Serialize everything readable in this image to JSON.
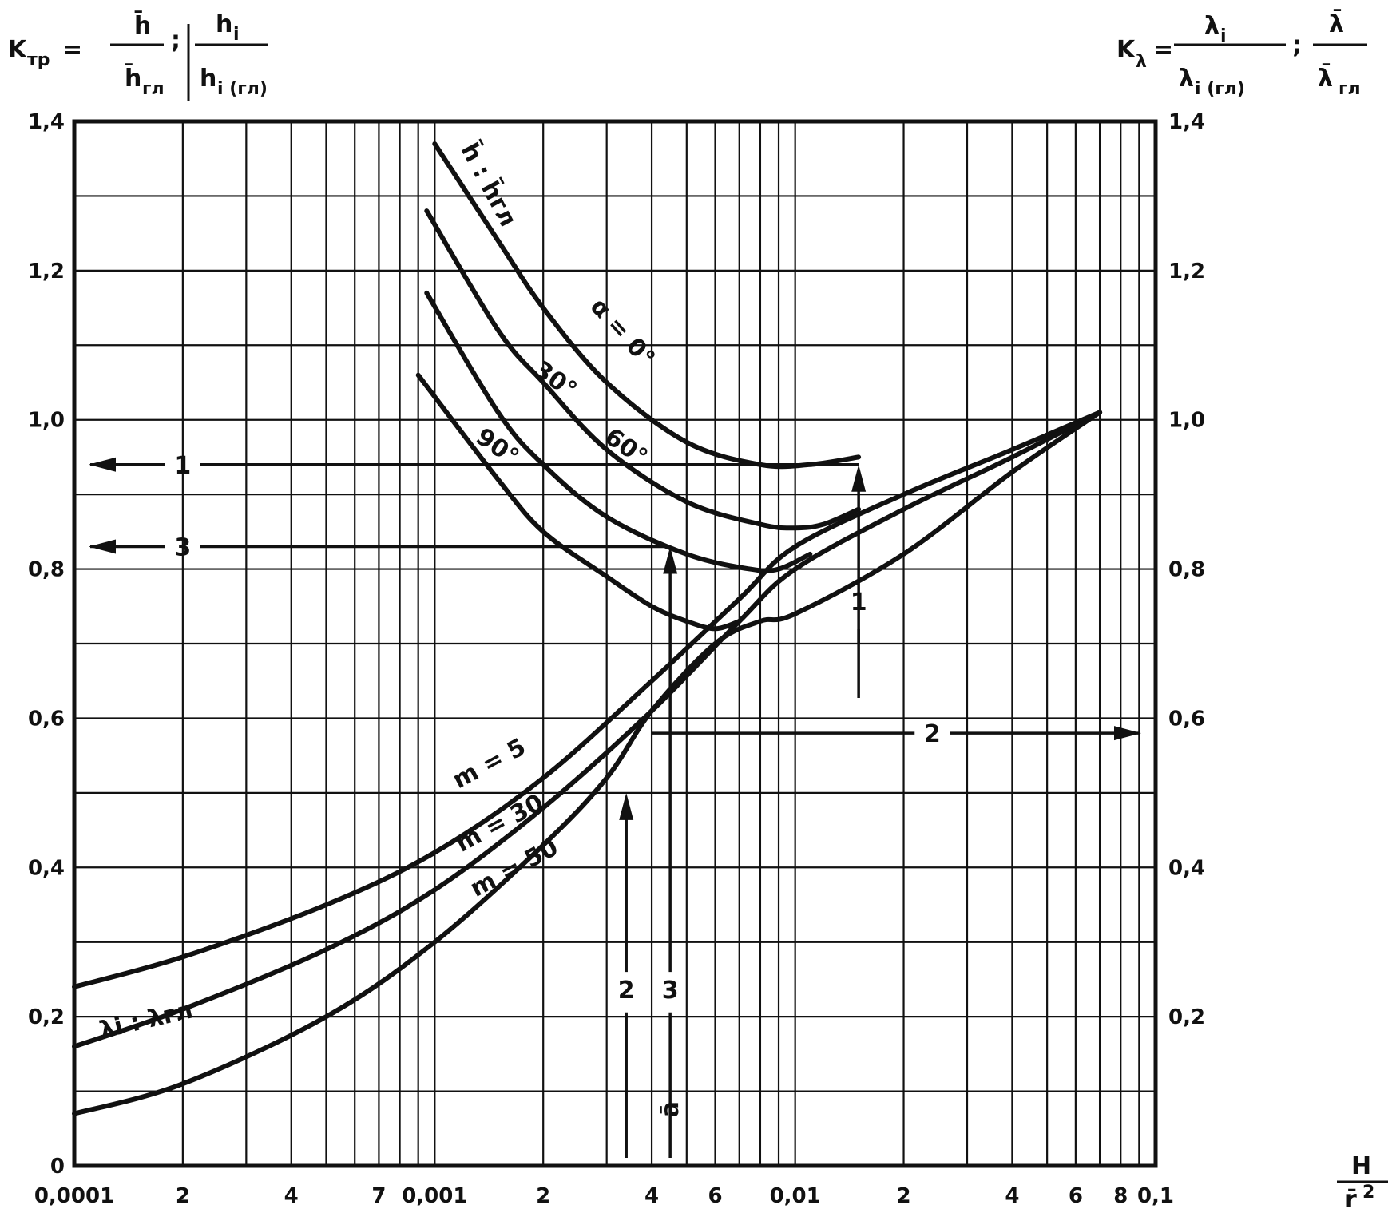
{
  "chart_data": {
    "type": "line",
    "x_scale": "log",
    "xlim": [
      0.0001,
      0.1
    ],
    "ylim": [
      0,
      1.4
    ],
    "grid": true,
    "left_axis_label": {
      "symbol": "K",
      "subscript": "тр",
      "equals": "=",
      "num1": "h̄",
      "den1": "h̄",
      "den1_sub": "гл",
      "sep": ";",
      "num2": "h",
      "num2_sub": "i",
      "den2": "h",
      "den2_sub": "i (гл)"
    },
    "right_axis_label": {
      "symbol": "K",
      "subscript": "λ",
      "equals": "=",
      "num1": "λ",
      "num1_sub": "i",
      "den1": "λ",
      "den1_sub": "i (гл)",
      "sep": ";",
      "num2": "λ̄",
      "den2": "λ̄",
      "den2_sub": "гл"
    },
    "x_axis_label": {
      "num": "H",
      "den": "r̄",
      "den_sup": "2"
    },
    "x_ticks": [
      {
        "value": 0.0001,
        "label": "0,0001"
      },
      {
        "value": 0.0002,
        "label": "2"
      },
      {
        "value": 0.0004,
        "label": "4"
      },
      {
        "value": 0.0007,
        "label": "7"
      },
      {
        "value": 0.001,
        "label": "0,001"
      },
      {
        "value": 0.002,
        "label": "2"
      },
      {
        "value": 0.004,
        "label": "4"
      },
      {
        "value": 0.006,
        "label": "6"
      },
      {
        "value": 0.01,
        "label": "0,01"
      },
      {
        "value": 0.02,
        "label": "2"
      },
      {
        "value": 0.04,
        "label": "4"
      },
      {
        "value": 0.06,
        "label": "6"
      },
      {
        "value": 0.08,
        "label": "8"
      },
      {
        "value": 0.1,
        "label": "0,1"
      }
    ],
    "y_ticks_left": [
      {
        "value": 0,
        "label": "0"
      },
      {
        "value": 0.2,
        "label": "0,2"
      },
      {
        "value": 0.4,
        "label": "0,4"
      },
      {
        "value": 0.6,
        "label": "0,6"
      },
      {
        "value": 0.8,
        "label": "0,8"
      },
      {
        "value": 1.0,
        "label": "1,0"
      },
      {
        "value": 1.2,
        "label": "1,2"
      },
      {
        "value": 1.4,
        "label": "1,4"
      }
    ],
    "y_ticks_right": [
      {
        "value": 0.2,
        "label": "0,2"
      },
      {
        "value": 0.4,
        "label": "0,4"
      },
      {
        "value": 0.6,
        "label": "0,6"
      },
      {
        "value": 0.8,
        "label": "0,8"
      },
      {
        "value": 1.0,
        "label": "1,0"
      },
      {
        "value": 1.2,
        "label": "1,2"
      },
      {
        "value": 1.4,
        "label": "1,4"
      }
    ],
    "series": [
      {
        "name": "α = 0°",
        "group": "h̄ : h̄гл",
        "x": [
          0.001,
          0.0015,
          0.002,
          0.003,
          0.005,
          0.008,
          0.011,
          0.015
        ],
        "y": [
          1.37,
          1.24,
          1.15,
          1.05,
          0.97,
          0.94,
          0.94,
          0.95
        ]
      },
      {
        "name": "30°",
        "group": "h̄ : h̄гл",
        "x": [
          0.00095,
          0.0015,
          0.002,
          0.003,
          0.005,
          0.008,
          0.01,
          0.012,
          0.015
        ],
        "y": [
          1.28,
          1.12,
          1.05,
          0.96,
          0.89,
          0.86,
          0.855,
          0.86,
          0.88
        ]
      },
      {
        "name": "60°",
        "group": "h̄ : h̄гл",
        "x": [
          0.00095,
          0.0015,
          0.002,
          0.003,
          0.005,
          0.0075,
          0.009,
          0.011
        ],
        "y": [
          1.17,
          1.01,
          0.94,
          0.87,
          0.82,
          0.8,
          0.8,
          0.82
        ]
      },
      {
        "name": "90°",
        "group": "h̄ : h̄гл",
        "x": [
          0.0009,
          0.0015,
          0.002,
          0.003,
          0.004,
          0.005,
          0.006,
          0.007
        ],
        "y": [
          1.06,
          0.92,
          0.85,
          0.79,
          0.75,
          0.73,
          0.72,
          0.73
        ]
      },
      {
        "name": "m = 5",
        "group": "λi : λгл",
        "x": [
          0.0001,
          0.0002,
          0.0005,
          0.001,
          0.002,
          0.004,
          0.007,
          0.01,
          0.02,
          0.04,
          0.07
        ],
        "y": [
          0.24,
          0.28,
          0.35,
          0.42,
          0.52,
          0.65,
          0.76,
          0.83,
          0.9,
          0.96,
          1.01
        ]
      },
      {
        "name": "m = 30",
        "group": "λi : λгл",
        "x": [
          0.0001,
          0.0002,
          0.0005,
          0.001,
          0.002,
          0.004,
          0.007,
          0.01,
          0.02,
          0.04,
          0.07
        ],
        "y": [
          0.16,
          0.21,
          0.29,
          0.37,
          0.48,
          0.61,
          0.73,
          0.8,
          0.88,
          0.95,
          1.01
        ]
      },
      {
        "name": "m = 50",
        "group": "λi : λгл",
        "x": [
          0.0001,
          0.0002,
          0.0005,
          0.001,
          0.002,
          0.003,
          0.004,
          0.006,
          0.008,
          0.01,
          0.02,
          0.04,
          0.07
        ],
        "y": [
          0.07,
          0.11,
          0.2,
          0.3,
          0.43,
          0.52,
          0.61,
          0.7,
          0.73,
          0.74,
          0.82,
          0.93,
          1.01
        ]
      }
    ],
    "group_labels": [
      {
        "text": "h̄ : h̄гл",
        "x": 0.00135,
        "y": 1.31,
        "rotate": 62
      },
      {
        "text": "λi : λгл",
        "x": 0.00016,
        "y": 0.185,
        "rotate": -13
      }
    ],
    "curve_labels": [
      {
        "text": "α = 0°",
        "x": 0.0032,
        "y": 1.11,
        "rotate": 48
      },
      {
        "text": "30°",
        "x": 0.0021,
        "y": 1.045,
        "rotate": 35
      },
      {
        "text": "60°",
        "x": 0.0033,
        "y": 0.955,
        "rotate": 35
      },
      {
        "text": "90°",
        "x": 0.00145,
        "y": 0.955,
        "rotate": 35
      },
      {
        "text": "m = 5",
        "x": 0.00145,
        "y": 0.53,
        "rotate": -28
      },
      {
        "text": "m = 30",
        "x": 0.00155,
        "y": 0.45,
        "rotate": -28
      },
      {
        "text": "m = 50",
        "x": 0.0017,
        "y": 0.39,
        "rotate": -28
      }
    ],
    "annotations": [
      {
        "label": "1",
        "kind": "horizontal-left",
        "y": 0.94,
        "x_from": 0.015,
        "label_x": 0.0002
      },
      {
        "label": "3",
        "kind": "horizontal-left",
        "y": 0.83,
        "x_from": 0.0045,
        "label_x": 0.0002
      },
      {
        "label": "2",
        "kind": "horizontal-right",
        "y": 0.58,
        "x_from": 0.004,
        "label_x": 0.024
      },
      {
        "label": "1",
        "kind": "vertical-up",
        "x": 0.015,
        "y_from": 0.7,
        "y_to": 0.94,
        "label_y": 0.745
      },
      {
        "label": "2",
        "kind": "vertical-up",
        "x": 0.0034,
        "y_from": 0.26,
        "y_to": 0.5,
        "label_y": 0.225
      },
      {
        "label": "3",
        "kind": "vertical-up",
        "x": 0.0045,
        "y_from": 0.26,
        "y_to": 0.83,
        "label_y": 0.225
      }
    ],
    "marked_x_label": "ā"
  }
}
